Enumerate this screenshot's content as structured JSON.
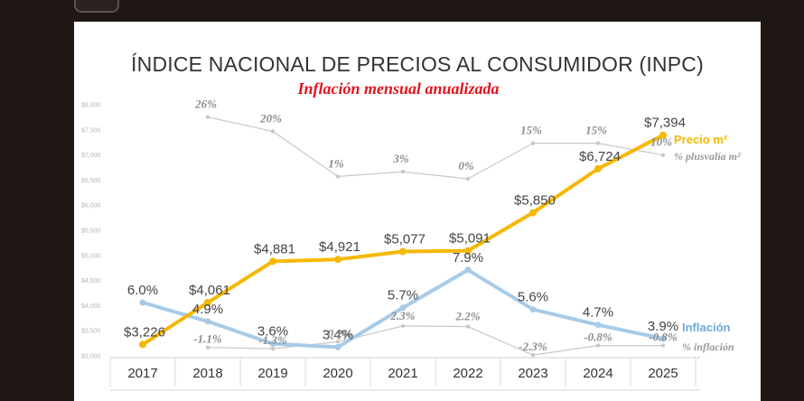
{
  "chart_data": {
    "type": "line",
    "title": "ÍNDICE NACIONAL DE PRECIOS AL CONSUMIDOR (INPC)",
    "subtitle": "Inflación mensual anualizada",
    "categories": [
      "2017",
      "2018",
      "2019",
      "2020",
      "2021",
      "2022",
      "2023",
      "2024",
      "2025"
    ],
    "ylim": [
      3000,
      8000
    ],
    "y_ticks": [
      "$8,000",
      "$7,500",
      "$7,000",
      "$6,500",
      "$6,000",
      "$5,500",
      "$5,000",
      "$4,500",
      "$4,000",
      "$3,500",
      "$3,000"
    ],
    "y_tick_values": [
      8000,
      7500,
      7000,
      6500,
      6000,
      5500,
      5000,
      4500,
      4000,
      3500,
      3000
    ],
    "series": [
      {
        "name": "Precio m²",
        "color": "#f5b800",
        "values": [
          3226,
          4061,
          4881,
          4921,
          5077,
          5091,
          5850,
          6724,
          7394
        ],
        "labels": [
          "$3,226",
          "$4,061",
          "$4,881",
          "$4,921",
          "$5,077",
          "$5,091",
          "$5,850",
          "$6,724",
          "$7,394"
        ]
      },
      {
        "name": "Inflación",
        "color": "#a7cbe8",
        "values": [
          6.0,
          4.9,
          3.6,
          3.4,
          5.7,
          7.9,
          5.6,
          4.7,
          3.9
        ],
        "labels": [
          "6.0%",
          "4.9%",
          "3.6%",
          "3.4%",
          "5.7%",
          "7.9%",
          "5.6%",
          "4.7%",
          "3.9%"
        ]
      },
      {
        "name": "% plusvalía m²",
        "color": "#c8c8c8",
        "values": [
          null,
          26,
          20,
          1,
          3,
          0,
          15,
          15,
          10
        ],
        "labels": [
          null,
          "26%",
          "20%",
          "1%",
          "3%",
          "0%",
          "15%",
          "15%",
          "10%"
        ]
      },
      {
        "name": "% inflación",
        "color": "#c8c8c8",
        "values": [
          null,
          -1.1,
          -1.3,
          -0.2,
          2.3,
          2.2,
          -2.3,
          -0.8,
          -0.8
        ],
        "labels": [
          null,
          "-1.1%",
          "-1.3%",
          "-0.2%",
          "2.3%",
          "2.2%",
          "-2.3%",
          "-0.8%",
          "-0.8%"
        ]
      }
    ],
    "legend_position": "right"
  }
}
